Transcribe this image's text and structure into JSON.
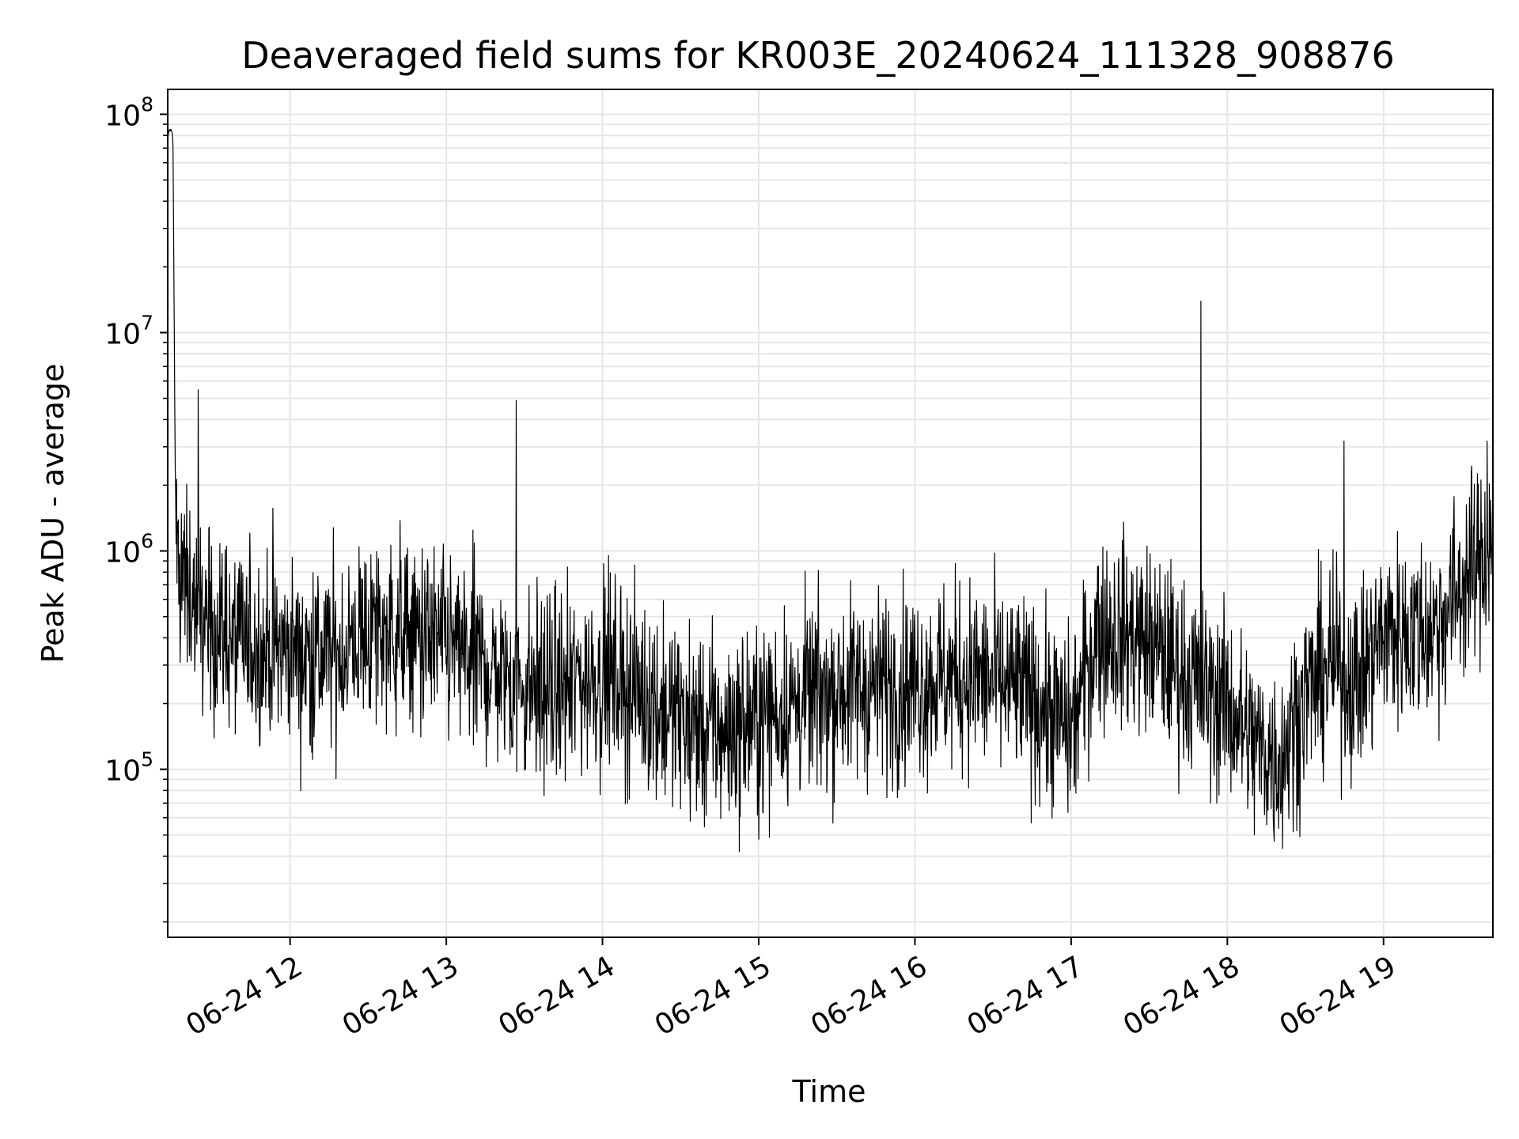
{
  "chart_data": {
    "type": "line",
    "title": "Deaveraged field sums for KR003E_20240624_111328_908876",
    "xlabel": "Time",
    "ylabel": "Peak ADU - average",
    "yscale": "log",
    "ylim": [
      17000,
      130000000
    ],
    "xlim": [
      "06-24 11:13",
      "06-24 19:42"
    ],
    "grid": true,
    "line_color": "#000000",
    "grid_color": "#e6e6e6",
    "x_ticks": [
      {
        "label": "06-24 12",
        "time": "06-24 12:00"
      },
      {
        "label": "06-24 13",
        "time": "06-24 13:00"
      },
      {
        "label": "06-24 14",
        "time": "06-24 14:00"
      },
      {
        "label": "06-24 15",
        "time": "06-24 15:00"
      },
      {
        "label": "06-24 16",
        "time": "06-24 16:00"
      },
      {
        "label": "06-24 17",
        "time": "06-24 17:00"
      },
      {
        "label": "06-24 18",
        "time": "06-24 18:00"
      },
      {
        "label": "06-24 19",
        "time": "06-24 19:00"
      }
    ],
    "y_ticks": [
      {
        "base": "10",
        "exp": "5",
        "value": 100000
      },
      {
        "base": "10",
        "exp": "6",
        "value": 1000000
      },
      {
        "base": "10",
        "exp": "7",
        "value": 10000000
      },
      {
        "base": "10",
        "exp": "8",
        "value": 100000000
      }
    ],
    "series": [
      {
        "x": [
          "06-24 11:13",
          "06-24 11:14",
          "06-24 11:15",
          "06-24 11:16",
          "06-24 11:17",
          "06-24 11:20",
          "06-24 11:25",
          "06-24 11:30",
          "06-24 11:40",
          "06-24 11:50",
          "06-24 12:00",
          "06-24 12:10",
          "06-24 12:20",
          "06-24 12:30",
          "06-24 12:40",
          "06-24 12:50",
          "06-24 13:00",
          "06-24 13:10",
          "06-24 13:20",
          "06-24 13:30",
          "06-24 13:40",
          "06-24 13:50",
          "06-24 14:00",
          "06-24 14:10",
          "06-24 14:20",
          "06-24 14:30",
          "06-24 14:40",
          "06-24 14:50",
          "06-24 15:00",
          "06-24 15:10",
          "06-24 15:20",
          "06-24 15:30",
          "06-24 15:40",
          "06-24 15:50",
          "06-24 16:00",
          "06-24 16:10",
          "06-24 16:20",
          "06-24 16:30",
          "06-24 16:40",
          "06-24 16:50",
          "06-24 17:00",
          "06-24 17:10",
          "06-24 17:20",
          "06-24 17:30",
          "06-24 17:40",
          "06-24 17:50",
          "06-24 18:00",
          "06-24 18:10",
          "06-24 18:20",
          "06-24 18:30",
          "06-24 18:40",
          "06-24 18:50",
          "06-24 19:00",
          "06-24 19:10",
          "06-24 19:20",
          "06-24 19:30",
          "06-24 19:40",
          "06-24 19:42"
        ],
        "y": [
          80000000,
          85000000,
          80000000,
          1500000,
          900000,
          700000,
          500000,
          450000,
          380000,
          360000,
          350000,
          330000,
          340000,
          420000,
          430000,
          400000,
          370000,
          320000,
          270000,
          240000,
          230000,
          250000,
          280000,
          240000,
          200000,
          170000,
          150000,
          150000,
          170000,
          190000,
          210000,
          230000,
          240000,
          240000,
          250000,
          260000,
          270000,
          250000,
          230000,
          190000,
          150000,
          430000,
          420000,
          380000,
          300000,
          230000,
          200000,
          130000,
          110000,
          220000,
          300000,
          250000,
          420000,
          430000,
          440000,
          700000,
          1000000,
          1100000
        ],
        "spikes": [
          {
            "time": "06-24 11:25",
            "value": 5500000
          },
          {
            "time": "06-24 13:27",
            "value": 4900000
          },
          {
            "time": "06-24 17:50",
            "value": 14000000
          },
          {
            "time": "06-24 18:45",
            "value": 3200000
          },
          {
            "time": "06-24 19:40",
            "value": 3200000
          }
        ]
      }
    ]
  }
}
